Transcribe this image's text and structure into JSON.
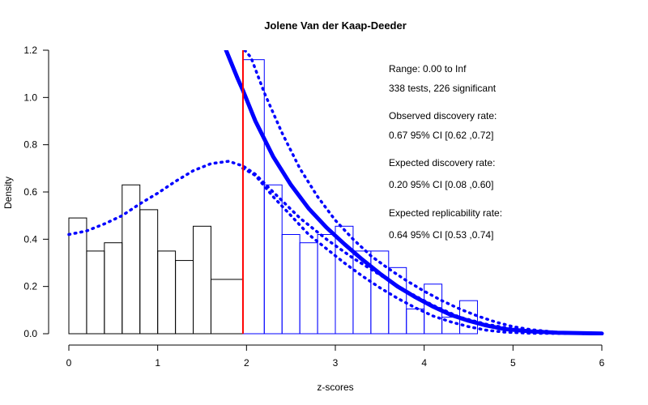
{
  "chart_data": {
    "type": "bar",
    "title": "Jolene Van der Kaap-Deeder",
    "xlabel": "z-scores",
    "ylabel": "Density",
    "xlim": [
      0,
      6
    ],
    "ylim": [
      0,
      1.2
    ],
    "x_ticks": [
      "0",
      "1",
      "2",
      "3",
      "4",
      "5",
      "6"
    ],
    "y_ticks": [
      "0.0",
      "0.2",
      "0.4",
      "0.6",
      "0.8",
      "1.0",
      "1.2"
    ],
    "grid": false,
    "histogram": {
      "bin_edges": [
        0,
        0.2,
        0.4,
        0.6,
        0.8,
        1.0,
        1.2,
        1.4,
        1.6,
        1.96,
        2.2,
        2.4,
        2.6,
        2.8,
        3.0,
        3.2,
        3.4,
        3.6,
        3.8,
        4.0,
        4.2,
        4.4,
        4.6
      ],
      "densities": [
        0.49,
        0.35,
        0.385,
        0.63,
        0.525,
        0.35,
        0.31,
        0.455,
        0.23,
        1.16,
        0.63,
        0.42,
        0.385,
        0.42,
        0.455,
        0.35,
        0.35,
        0.28,
        0.105,
        0.21,
        0.07,
        0.14
      ],
      "significance_threshold": 1.96,
      "nonsignificant_color": "#000000",
      "significant_color": "#0000ff"
    },
    "vline": {
      "x": 1.96,
      "color": "#ff0000"
    },
    "curves": [
      {
        "style": "dotted",
        "color": "#0000ff",
        "points": [
          [
            0,
            0.42
          ],
          [
            0.2,
            0.435
          ],
          [
            0.4,
            0.465
          ],
          [
            0.6,
            0.5
          ],
          [
            0.8,
            0.55
          ],
          [
            1.0,
            0.595
          ],
          [
            1.2,
            0.645
          ],
          [
            1.4,
            0.69
          ],
          [
            1.6,
            0.72
          ],
          [
            1.8,
            0.73
          ],
          [
            1.96,
            0.71
          ],
          [
            2.1,
            0.675
          ],
          [
            2.3,
            0.6
          ],
          [
            2.6,
            0.49
          ],
          [
            2.9,
            0.4
          ],
          [
            3.2,
            0.32
          ],
          [
            3.5,
            0.25
          ],
          [
            3.8,
            0.18
          ],
          [
            4.1,
            0.12
          ],
          [
            4.4,
            0.07
          ],
          [
            4.7,
            0.04
          ],
          [
            5.0,
            0.02
          ],
          [
            5.5,
            0.006
          ],
          [
            6.0,
            0.0
          ]
        ]
      },
      {
        "style": "solid",
        "color": "#0000ff",
        "points": [
          [
            1.77,
            1.2
          ],
          [
            1.9,
            1.08
          ],
          [
            1.96,
            1.03
          ],
          [
            2.1,
            0.9
          ],
          [
            2.3,
            0.75
          ],
          [
            2.5,
            0.63
          ],
          [
            2.7,
            0.53
          ],
          [
            2.9,
            0.45
          ],
          [
            3.1,
            0.38
          ],
          [
            3.3,
            0.315
          ],
          [
            3.5,
            0.255
          ],
          [
            3.7,
            0.2
          ],
          [
            3.9,
            0.155
          ],
          [
            4.1,
            0.115
          ],
          [
            4.3,
            0.08
          ],
          [
            4.5,
            0.055
          ],
          [
            4.7,
            0.035
          ],
          [
            4.9,
            0.02
          ],
          [
            5.2,
            0.01
          ],
          [
            5.5,
            0.004
          ],
          [
            6.0,
            0.001
          ]
        ]
      },
      {
        "style": "dotted",
        "color": "#0000ff",
        "points": [
          [
            1.98,
            1.2
          ],
          [
            2.05,
            1.17
          ],
          [
            2.2,
            1.02
          ],
          [
            2.4,
            0.85
          ],
          [
            2.6,
            0.7
          ],
          [
            2.8,
            0.58
          ],
          [
            3.0,
            0.48
          ],
          [
            3.2,
            0.4
          ],
          [
            3.4,
            0.33
          ],
          [
            3.6,
            0.275
          ],
          [
            3.8,
            0.225
          ],
          [
            4.0,
            0.18
          ],
          [
            4.2,
            0.14
          ],
          [
            4.4,
            0.105
          ],
          [
            4.6,
            0.075
          ],
          [
            4.8,
            0.05
          ],
          [
            5.0,
            0.03
          ],
          [
            5.2,
            0.017
          ],
          [
            5.5,
            0.006
          ],
          [
            6.0,
            0.001
          ]
        ]
      },
      {
        "style": "dotted",
        "color": "#0000ff",
        "points": [
          [
            1.96,
            0.7
          ],
          [
            2.1,
            0.67
          ],
          [
            2.3,
            0.58
          ],
          [
            2.5,
            0.5
          ],
          [
            2.7,
            0.42
          ],
          [
            2.9,
            0.36
          ],
          [
            3.1,
            0.3
          ],
          [
            3.3,
            0.245
          ],
          [
            3.5,
            0.195
          ],
          [
            3.7,
            0.15
          ],
          [
            3.9,
            0.11
          ],
          [
            4.1,
            0.075
          ],
          [
            4.3,
            0.05
          ],
          [
            4.5,
            0.03
          ],
          [
            4.7,
            0.015
          ],
          [
            4.9,
            0.007
          ],
          [
            5.2,
            0.002
          ],
          [
            6.0,
            0.0
          ]
        ]
      }
    ],
    "annotations": [
      "Range: 0.00 to Inf",
      "338 tests, 226 significant",
      "Observed discovery rate:",
      "0.67  95% CI [0.62 ,0.72]",
      "Expected discovery rate:",
      "0.20  95% CI [0.08 ,0.60]",
      "Expected replicability rate:",
      "0.64  95% CI [0.53 ,0.74]"
    ]
  }
}
